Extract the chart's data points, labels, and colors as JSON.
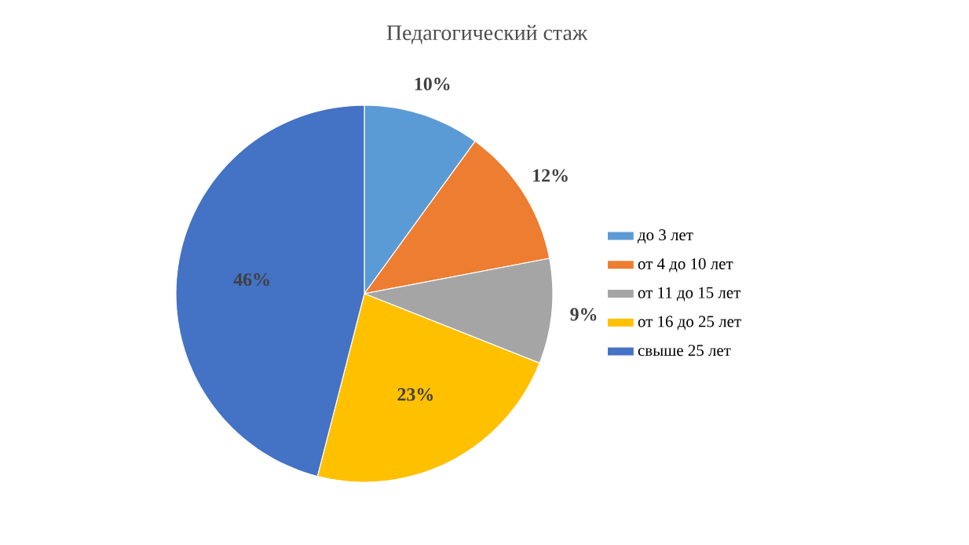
{
  "chart_data": {
    "type": "pie",
    "title": "Педагогический стаж",
    "categories": [
      "до 3 лет",
      "от 4 до 10 лет",
      "от 11 до 15 лет",
      "от 16 до 25 лет",
      "свыше 25 лет"
    ],
    "values": [
      10,
      12,
      9,
      23,
      46
    ],
    "value_labels": [
      "10%",
      "12%",
      "9%",
      "23%",
      "46%"
    ],
    "colors": [
      "#5b9bd5",
      "#ed7d31",
      "#a5a5a5",
      "#ffc000",
      "#4472c4"
    ],
    "legend": "right"
  }
}
